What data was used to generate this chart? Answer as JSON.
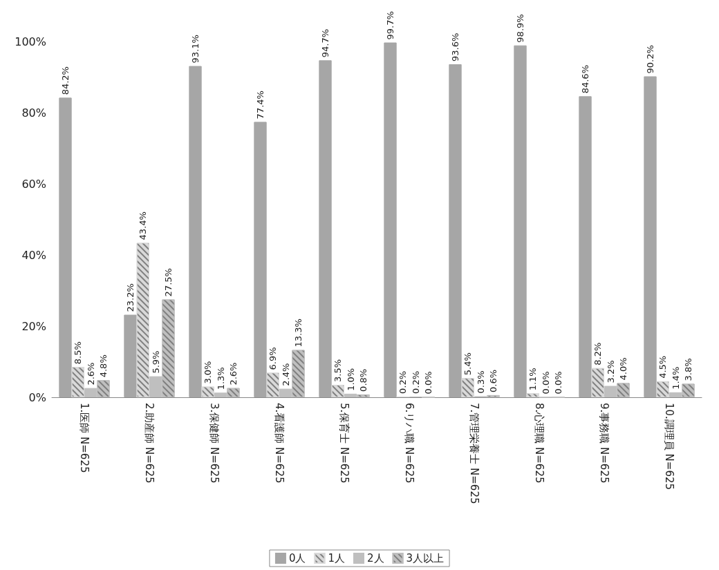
{
  "chart_data": {
    "type": "bar",
    "categories": [
      "1.医師 N=625",
      "2.助産師 N=625",
      "3.保健師 N=625",
      "4.看護師 N=625",
      "5.保育士 N=625",
      "6.リハ職 N=625",
      "7.管理栄養士 N=625",
      "8.心理職 N=625",
      "9.事務職 N=625",
      "10.調理員 N=625"
    ],
    "series": [
      {
        "name": "0人",
        "color": "#a6a6a6",
        "values": [
          84.2,
          23.2,
          93.1,
          77.4,
          94.7,
          99.7,
          93.6,
          98.9,
          84.6,
          90.2
        ],
        "value_labels": [
          "84.2%",
          "23.2%",
          "93.1%",
          "77.4%",
          "94.7%",
          "99.7%",
          "93.6%",
          "98.9%",
          "84.6%",
          "90.2%"
        ]
      },
      {
        "name": "1人",
        "color": "#d9d9d9",
        "values": [
          8.5,
          43.4,
          3.0,
          6.9,
          3.5,
          0.2,
          5.4,
          1.1,
          8.2,
          4.5
        ],
        "value_labels": [
          "8.5%",
          "43.4%",
          "3.0%",
          "6.9%",
          "3.5%",
          "0.2%",
          "5.4%",
          "1.1%",
          "8.2%",
          "4.5%"
        ]
      },
      {
        "name": "2人",
        "color": "#bfbfbf",
        "values": [
          2.6,
          5.9,
          1.3,
          2.4,
          1.0,
          0.2,
          0.3,
          0.0,
          3.2,
          1.4
        ],
        "value_labels": [
          "2.6%",
          "5.9%",
          "1.3%",
          "2.4%",
          "1.0%",
          "0.2%",
          "0.3%",
          "0.0%",
          "3.2%",
          "1.4%"
        ]
      },
      {
        "name": "3人以上",
        "color": "#bfbfbf",
        "values": [
          4.8,
          27.5,
          2.6,
          13.3,
          0.8,
          0.0,
          0.6,
          0.0,
          4.0,
          3.8
        ],
        "value_labels": [
          "4.8%",
          "27.5%",
          "2.6%",
          "13.3%",
          "0.8%",
          "0.0%",
          "0.6%",
          "0.0%",
          "4.0%",
          "3.8%"
        ]
      }
    ],
    "ylim": [
      0,
      100
    ],
    "yticks": [
      {
        "value": 0,
        "label": "0%"
      },
      {
        "value": 20,
        "label": "20%"
      },
      {
        "value": 40,
        "label": "40%"
      },
      {
        "value": 60,
        "label": "60%"
      },
      {
        "value": 80,
        "label": "80%"
      },
      {
        "value": 100,
        "label": "100%"
      }
    ],
    "grid": false,
    "legend": "bottom"
  }
}
